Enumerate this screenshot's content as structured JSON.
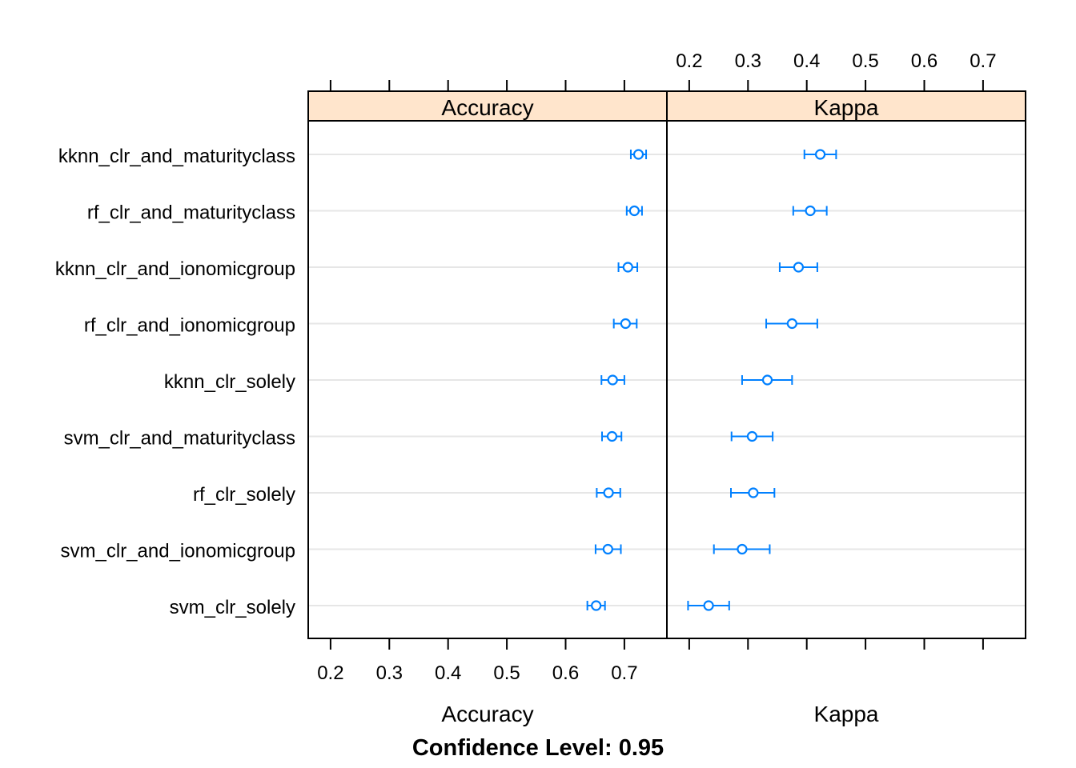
{
  "chart_data": {
    "type": "dotplot",
    "ticks": [
      0.2,
      0.3,
      0.4,
      0.5,
      0.6,
      0.7
    ],
    "tick_labels": [
      "0.2",
      "0.3",
      "0.4",
      "0.5",
      "0.6",
      "0.7"
    ],
    "xlim": [
      0.162,
      0.772
    ],
    "footer": "Confidence Level: 0.95",
    "colors": {
      "point": "#0080ff",
      "strip": "#ffe5cc",
      "grid": "#e6e6e6"
    },
    "models": [
      "kknn_clr_and_maturityclass",
      "rf_clr_and_maturityclass",
      "kknn_clr_and_ionomicgroup",
      "rf_clr_and_ionomicgroup",
      "kknn_clr_solely",
      "svm_clr_and_maturityclass",
      "rf_clr_solely",
      "svm_clr_and_ionomicgroup",
      "svm_clr_solely"
    ],
    "panels": [
      {
        "name": "Accuracy",
        "xlabel": "Accuracy",
        "values": [
          {
            "est": 0.724,
            "lower": 0.711,
            "upper": 0.737
          },
          {
            "est": 0.717,
            "lower": 0.704,
            "upper": 0.73
          },
          {
            "est": 0.706,
            "lower": 0.69,
            "upper": 0.722
          },
          {
            "est": 0.702,
            "lower": 0.682,
            "upper": 0.721
          },
          {
            "est": 0.68,
            "lower": 0.661,
            "upper": 0.7
          },
          {
            "est": 0.679,
            "lower": 0.662,
            "upper": 0.695
          },
          {
            "est": 0.673,
            "lower": 0.653,
            "upper": 0.693
          },
          {
            "est": 0.672,
            "lower": 0.651,
            "upper": 0.694
          },
          {
            "est": 0.652,
            "lower": 0.637,
            "upper": 0.667
          }
        ]
      },
      {
        "name": "Kappa",
        "xlabel": "Kappa",
        "values": [
          {
            "est": 0.423,
            "lower": 0.396,
            "upper": 0.45
          },
          {
            "est": 0.406,
            "lower": 0.377,
            "upper": 0.434
          },
          {
            "est": 0.386,
            "lower": 0.354,
            "upper": 0.418
          },
          {
            "est": 0.375,
            "lower": 0.331,
            "upper": 0.418
          },
          {
            "est": 0.333,
            "lower": 0.29,
            "upper": 0.375
          },
          {
            "est": 0.307,
            "lower": 0.272,
            "upper": 0.342
          },
          {
            "est": 0.309,
            "lower": 0.271,
            "upper": 0.345
          },
          {
            "est": 0.29,
            "lower": 0.242,
            "upper": 0.337
          },
          {
            "est": 0.233,
            "lower": 0.198,
            "upper": 0.268
          }
        ]
      }
    ]
  }
}
